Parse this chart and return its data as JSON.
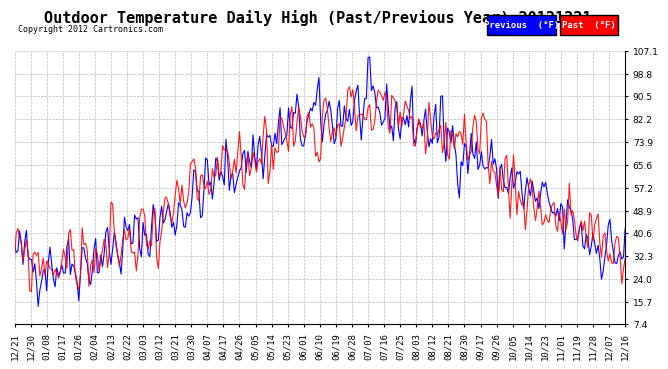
{
  "title": "Outdoor Temperature Daily High (Past/Previous Year) 20121221",
  "copyright": "Copyright 2012 Cartronics.com",
  "yticks": [
    7.4,
    15.7,
    24.0,
    32.3,
    40.6,
    48.9,
    57.2,
    65.6,
    73.9,
    82.2,
    90.5,
    98.8,
    107.1
  ],
  "ylim": [
    7.4,
    107.1
  ],
  "x_labels": [
    "12/21",
    "12/30",
    "01/08",
    "01/17",
    "01/26",
    "02/04",
    "02/13",
    "02/22",
    "03/03",
    "03/12",
    "03/21",
    "03/30",
    "04/07",
    "04/17",
    "04/26",
    "05/05",
    "05/14",
    "05/23",
    "06/01",
    "06/10",
    "06/19",
    "06/28",
    "07/07",
    "07/16",
    "07/25",
    "08/03",
    "08/12",
    "08/21",
    "08/30",
    "09/17",
    "09/26",
    "10/05",
    "10/14",
    "10/23",
    "11/01",
    "11/19",
    "11/28",
    "12/07",
    "12/16"
  ],
  "legend_previous_color": "#0000ff",
  "legend_past_color": "#ff0000",
  "legend_previous_label": "Previous  (°F)",
  "legend_past_label": "Past  (°F)",
  "background_color": "#ffffff",
  "plot_bg_color": "#ffffff",
  "grid_color": "#aaaaaa",
  "title_fontsize": 11,
  "tick_fontsize": 6.5,
  "line_width": 0.8
}
